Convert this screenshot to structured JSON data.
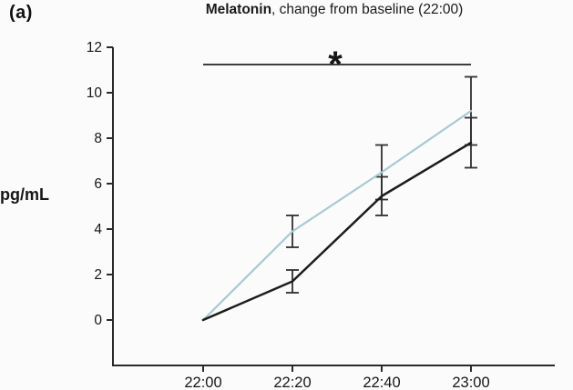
{
  "panel_label": "(a)",
  "title": {
    "bold": "Melatonin",
    "rest": ", change from baseline (22:00)"
  },
  "y_axis_label": "pg/mL",
  "colors": {
    "background": "#fbfbfb",
    "axis": "#2a2a2a",
    "tick_text": "#161616",
    "error_bar": "#2f2f2f",
    "significance_line": "#3f3f3f",
    "series_teal": "#a5cbd1",
    "series_black": "#1c1c1c"
  },
  "significance": {
    "symbol": "*",
    "from": "22:00",
    "to": "23:00",
    "y_value": 11.2
  },
  "chart_data": {
    "type": "line",
    "title": "Melatonin, change from baseline (22:00)",
    "xlabel": "",
    "ylabel": "pg/mL",
    "categories": [
      "22:00",
      "22:20",
      "22:40",
      "23:00"
    ],
    "series": [
      {
        "name": "teal-line",
        "color": "#a5cbd1",
        "values": [
          0,
          3.9,
          6.5,
          9.2
        ],
        "errors": [
          0,
          0.7,
          1.2,
          1.5
        ]
      },
      {
        "name": "black-line",
        "color": "#1c1c1c",
        "values": [
          0,
          1.7,
          5.45,
          7.8
        ],
        "errors": [
          0,
          0.5,
          0.85,
          1.1
        ]
      }
    ],
    "ylim": [
      0,
      12
    ],
    "yticks": [
      0,
      2,
      4,
      6,
      8,
      10,
      12
    ],
    "grid": false,
    "legend": "none",
    "annotations": [
      {
        "type": "significance-bar",
        "label": "*",
        "from": "22:00",
        "to": "23:00",
        "y": 11.2
      }
    ]
  }
}
